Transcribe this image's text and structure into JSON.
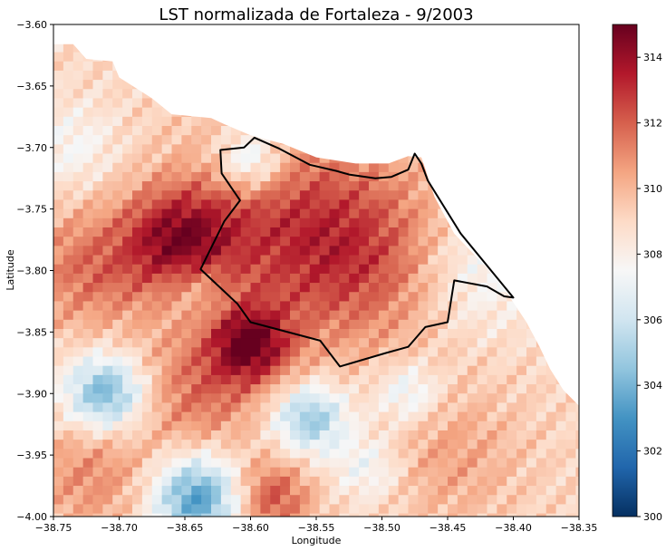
{
  "chart_data": {
    "type": "heatmap",
    "title": "LST normalizada de Fortaleza - 9/2003",
    "xlabel": "Longitude",
    "ylabel": "Latitude",
    "xlim": [
      -38.75,
      -38.35
    ],
    "ylim": [
      -4.0,
      -3.6
    ],
    "x_ticks": [
      -38.75,
      -38.7,
      -38.65,
      -38.6,
      -38.55,
      -38.5,
      -38.45,
      -38.4,
      -38.35
    ],
    "x_tick_labels": [
      "−38.75",
      "−38.70",
      "−38.65",
      "−38.60",
      "−38.55",
      "−38.50",
      "−38.45",
      "−38.40",
      "−38.35"
    ],
    "y_ticks": [
      -3.6,
      -3.65,
      -3.7,
      -3.75,
      -3.8,
      -3.85,
      -3.9,
      -3.95,
      -4.0
    ],
    "y_tick_labels": [
      "−3.60",
      "−3.65",
      "−3.70",
      "−3.75",
      "−3.80",
      "−3.85",
      "−3.90",
      "−3.95",
      "−4.00"
    ],
    "colorbar": {
      "colormap": "RdBu_r",
      "range": [
        300,
        315
      ],
      "ticks": [
        300,
        302,
        304,
        306,
        308,
        310,
        312,
        314
      ],
      "tick_labels": [
        "300",
        "302",
        "304",
        "306",
        "308",
        "310",
        "312",
        "314"
      ]
    },
    "grid": false,
    "value_field": {
      "background": 309,
      "features": [
        {
          "lon": -38.655,
          "lat": -3.775,
          "value": 313.5,
          "spread": 0.03
        },
        {
          "lon": -38.6,
          "lat": -3.86,
          "value": 314.0,
          "spread": 0.022
        },
        {
          "lon": -38.575,
          "lat": -3.765,
          "value": 312.0,
          "spread": 0.06
        },
        {
          "lon": -38.51,
          "lat": -3.79,
          "value": 311.5,
          "spread": 0.05
        },
        {
          "lon": -38.725,
          "lat": -3.8,
          "value": 311.5,
          "spread": 0.035
        },
        {
          "lon": -38.64,
          "lat": -3.9,
          "value": 311.5,
          "spread": 0.035
        },
        {
          "lon": -38.585,
          "lat": -3.985,
          "value": 312.5,
          "spread": 0.022
        },
        {
          "lon": -38.72,
          "lat": -3.965,
          "value": 311.0,
          "spread": 0.035
        },
        {
          "lon": -38.45,
          "lat": -3.95,
          "value": 310.5,
          "spread": 0.04
        },
        {
          "lon": -38.71,
          "lat": -3.9,
          "value": 303.5,
          "spread": 0.022
        },
        {
          "lon": -38.64,
          "lat": -3.985,
          "value": 303.0,
          "spread": 0.025
        },
        {
          "lon": -38.555,
          "lat": -3.92,
          "value": 304.5,
          "spread": 0.02
        },
        {
          "lon": -38.48,
          "lat": -3.9,
          "value": 306.5,
          "spread": 0.018
        },
        {
          "lon": -38.6,
          "lat": -3.71,
          "value": 305.5,
          "spread": 0.018
        },
        {
          "lon": -38.64,
          "lat": -3.815,
          "value": 307.5,
          "spread": 0.018
        },
        {
          "lon": -38.43,
          "lat": -3.8,
          "value": 307.0,
          "spread": 0.035
        },
        {
          "lon": -38.735,
          "lat": -3.7,
          "value": 307.5,
          "spread": 0.025
        },
        {
          "lon": -38.51,
          "lat": -3.96,
          "value": 307.0,
          "spread": 0.02
        }
      ]
    },
    "boundary_polygon": [
      [
        -38.597,
        -3.692
      ],
      [
        -38.578,
        -3.701
      ],
      [
        -38.555,
        -3.714
      ],
      [
        -38.535,
        -3.719
      ],
      [
        -38.525,
        -3.722
      ],
      [
        -38.505,
        -3.725
      ],
      [
        -38.493,
        -3.724
      ],
      [
        -38.48,
        -3.718
      ],
      [
        -38.475,
        -3.705
      ],
      [
        -38.47,
        -3.713
      ],
      [
        -38.465,
        -3.727
      ],
      [
        -38.44,
        -3.77
      ],
      [
        -38.4,
        -3.822
      ],
      [
        -38.407,
        -3.821
      ],
      [
        -38.42,
        -3.813
      ],
      [
        -38.445,
        -3.808
      ],
      [
        -38.45,
        -3.842
      ],
      [
        -38.467,
        -3.846
      ],
      [
        -38.48,
        -3.862
      ],
      [
        -38.497,
        -3.867
      ],
      [
        -38.532,
        -3.878
      ],
      [
        -38.547,
        -3.857
      ],
      [
        -38.6,
        -3.842
      ],
      [
        -38.61,
        -3.827
      ],
      [
        -38.638,
        -3.799
      ],
      [
        -38.62,
        -3.76
      ],
      [
        -38.608,
        -3.743
      ],
      [
        -38.622,
        -3.721
      ],
      [
        -38.623,
        -3.702
      ],
      [
        -38.605,
        -3.7
      ],
      [
        -38.597,
        -3.692
      ]
    ],
    "nodata_region": [
      [
        -38.75,
        -3.616
      ],
      [
        -38.735,
        -3.616
      ],
      [
        -38.725,
        -3.628
      ],
      [
        -38.705,
        -3.63
      ],
      [
        -38.7,
        -3.643
      ],
      [
        -38.675,
        -3.66
      ],
      [
        -38.66,
        -3.673
      ],
      [
        -38.63,
        -3.676
      ],
      [
        -38.62,
        -3.681
      ],
      [
        -38.6,
        -3.69
      ],
      [
        -38.575,
        -3.697
      ],
      [
        -38.55,
        -3.708
      ],
      [
        -38.52,
        -3.713
      ],
      [
        -38.495,
        -3.713
      ],
      [
        -38.48,
        -3.707
      ],
      [
        -38.47,
        -3.708
      ],
      [
        -38.46,
        -3.74
      ],
      [
        -38.445,
        -3.77
      ],
      [
        -38.42,
        -3.798
      ],
      [
        -38.405,
        -3.818
      ],
      [
        -38.39,
        -3.842
      ],
      [
        -38.38,
        -3.862
      ],
      [
        -38.372,
        -3.88
      ],
      [
        -38.362,
        -3.897
      ],
      [
        -38.35,
        -3.91
      ],
      [
        -38.35,
        -3.6
      ],
      [
        -38.75,
        -3.6
      ]
    ]
  }
}
